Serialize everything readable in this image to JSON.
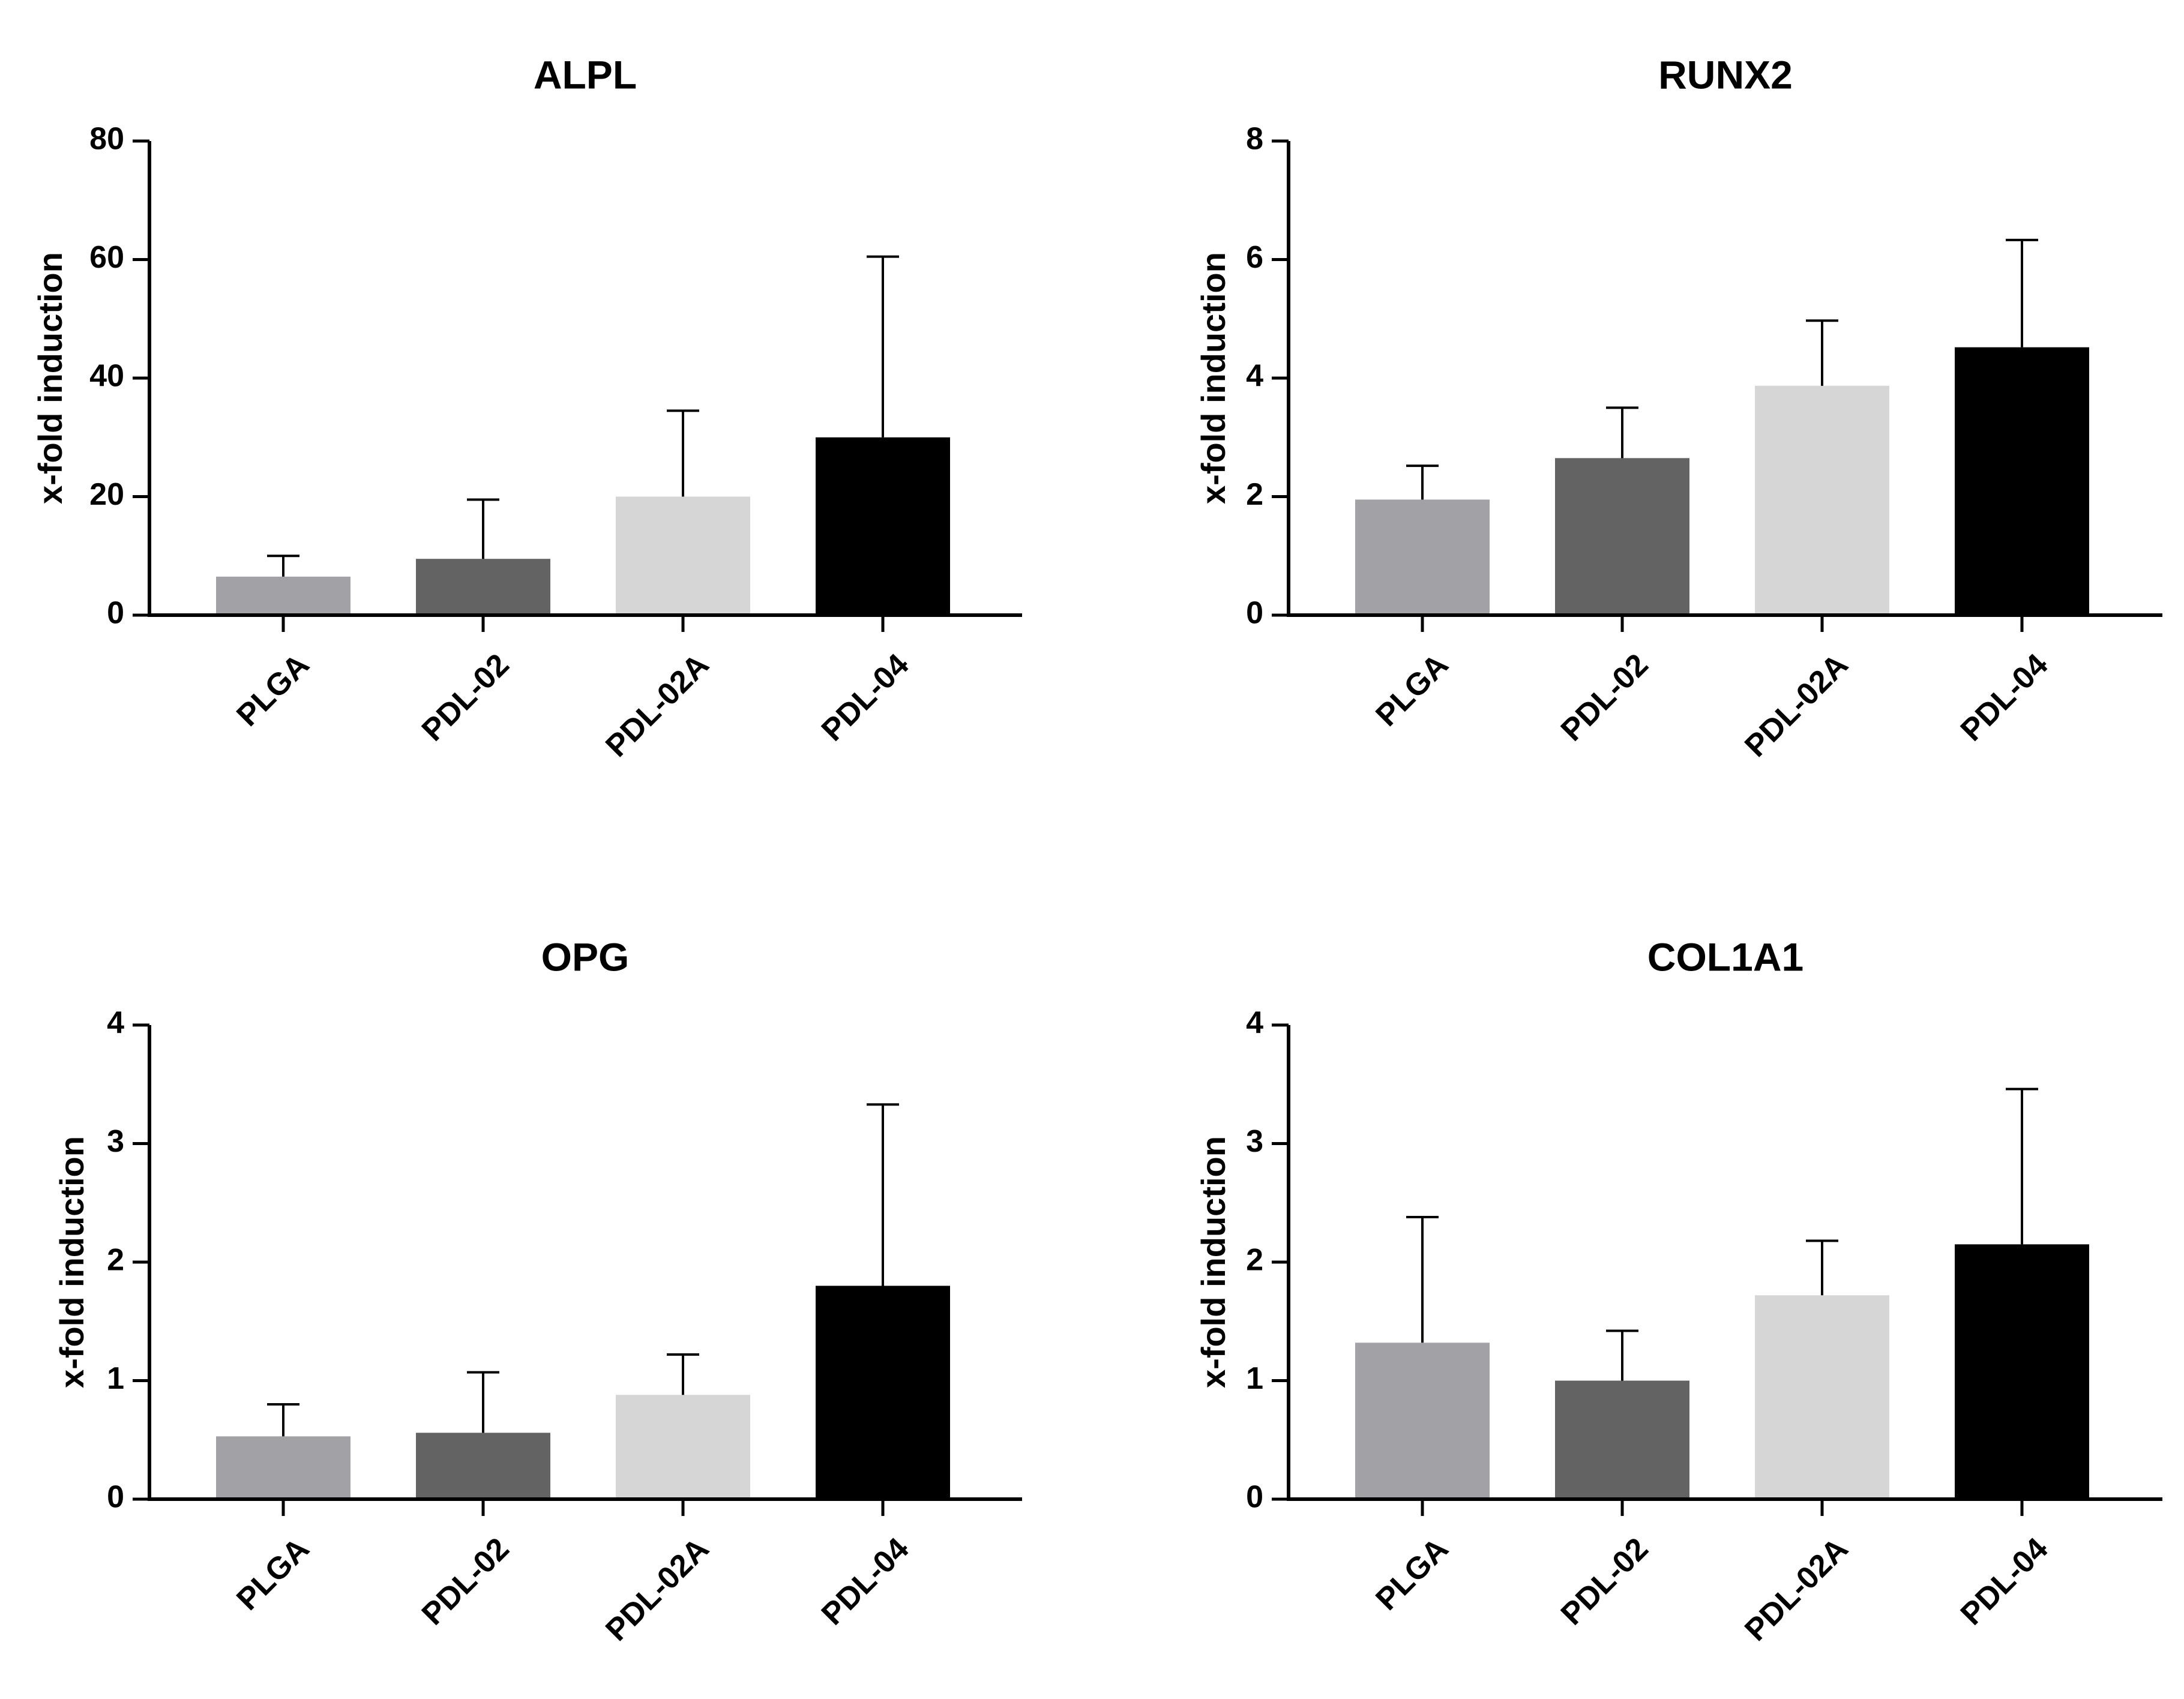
{
  "chart_data": [
    {
      "type": "bar",
      "title": "ALPL",
      "xlabel": "",
      "ylabel": "x-fold induction",
      "ylim": [
        0,
        80
      ],
      "yticks": [
        0,
        20,
        40,
        60,
        80
      ],
      "categories": [
        "PLGA",
        "PDL-02",
        "PDL-02A",
        "PDL-04"
      ],
      "values": [
        6.5,
        9.5,
        20,
        30
      ],
      "error_upper": [
        10,
        19.5,
        34.5,
        60.5
      ],
      "colors": [
        "#a2a2a6",
        "#636363",
        "#d6d6d6",
        "#000000"
      ]
    },
    {
      "type": "bar",
      "title": "RUNX2",
      "xlabel": "",
      "ylabel": "x-fold induction",
      "ylim": [
        0,
        8
      ],
      "yticks": [
        0,
        2,
        4,
        6,
        8
      ],
      "categories": [
        "PLGA",
        "PDL-02",
        "PDL-02A",
        "PDL-04"
      ],
      "values": [
        1.95,
        2.65,
        3.87,
        4.52
      ],
      "error_upper": [
        2.52,
        3.5,
        4.97,
        6.33
      ],
      "colors": [
        "#a2a2a6",
        "#636363",
        "#d6d6d6",
        "#000000"
      ]
    },
    {
      "type": "bar",
      "title": "OPG",
      "xlabel": "",
      "ylabel": "x-fold induction",
      "ylim": [
        0,
        4
      ],
      "yticks": [
        0,
        1,
        2,
        3,
        4
      ],
      "categories": [
        "PLGA",
        "PDL-02",
        "PDL-02A",
        "PDL-04"
      ],
      "values": [
        0.53,
        0.56,
        0.88,
        1.8
      ],
      "error_upper": [
        0.8,
        1.07,
        1.22,
        3.33
      ],
      "colors": [
        "#a2a2a6",
        "#636363",
        "#d6d6d6",
        "#000000"
      ]
    },
    {
      "type": "bar",
      "title": "COL1A1",
      "xlabel": "",
      "ylabel": "x-fold induction",
      "ylim": [
        0,
        4
      ],
      "yticks": [
        0,
        1,
        2,
        3,
        4
      ],
      "categories": [
        "PLGA",
        "PDL-02",
        "PDL-02A",
        "PDL-04"
      ],
      "values": [
        1.32,
        1.0,
        1.72,
        2.15
      ],
      "error_upper": [
        2.38,
        1.42,
        2.18,
        3.46
      ],
      "colors": [
        "#a2a2a6",
        "#636363",
        "#d6d6d6",
        "#000000"
      ]
    }
  ]
}
